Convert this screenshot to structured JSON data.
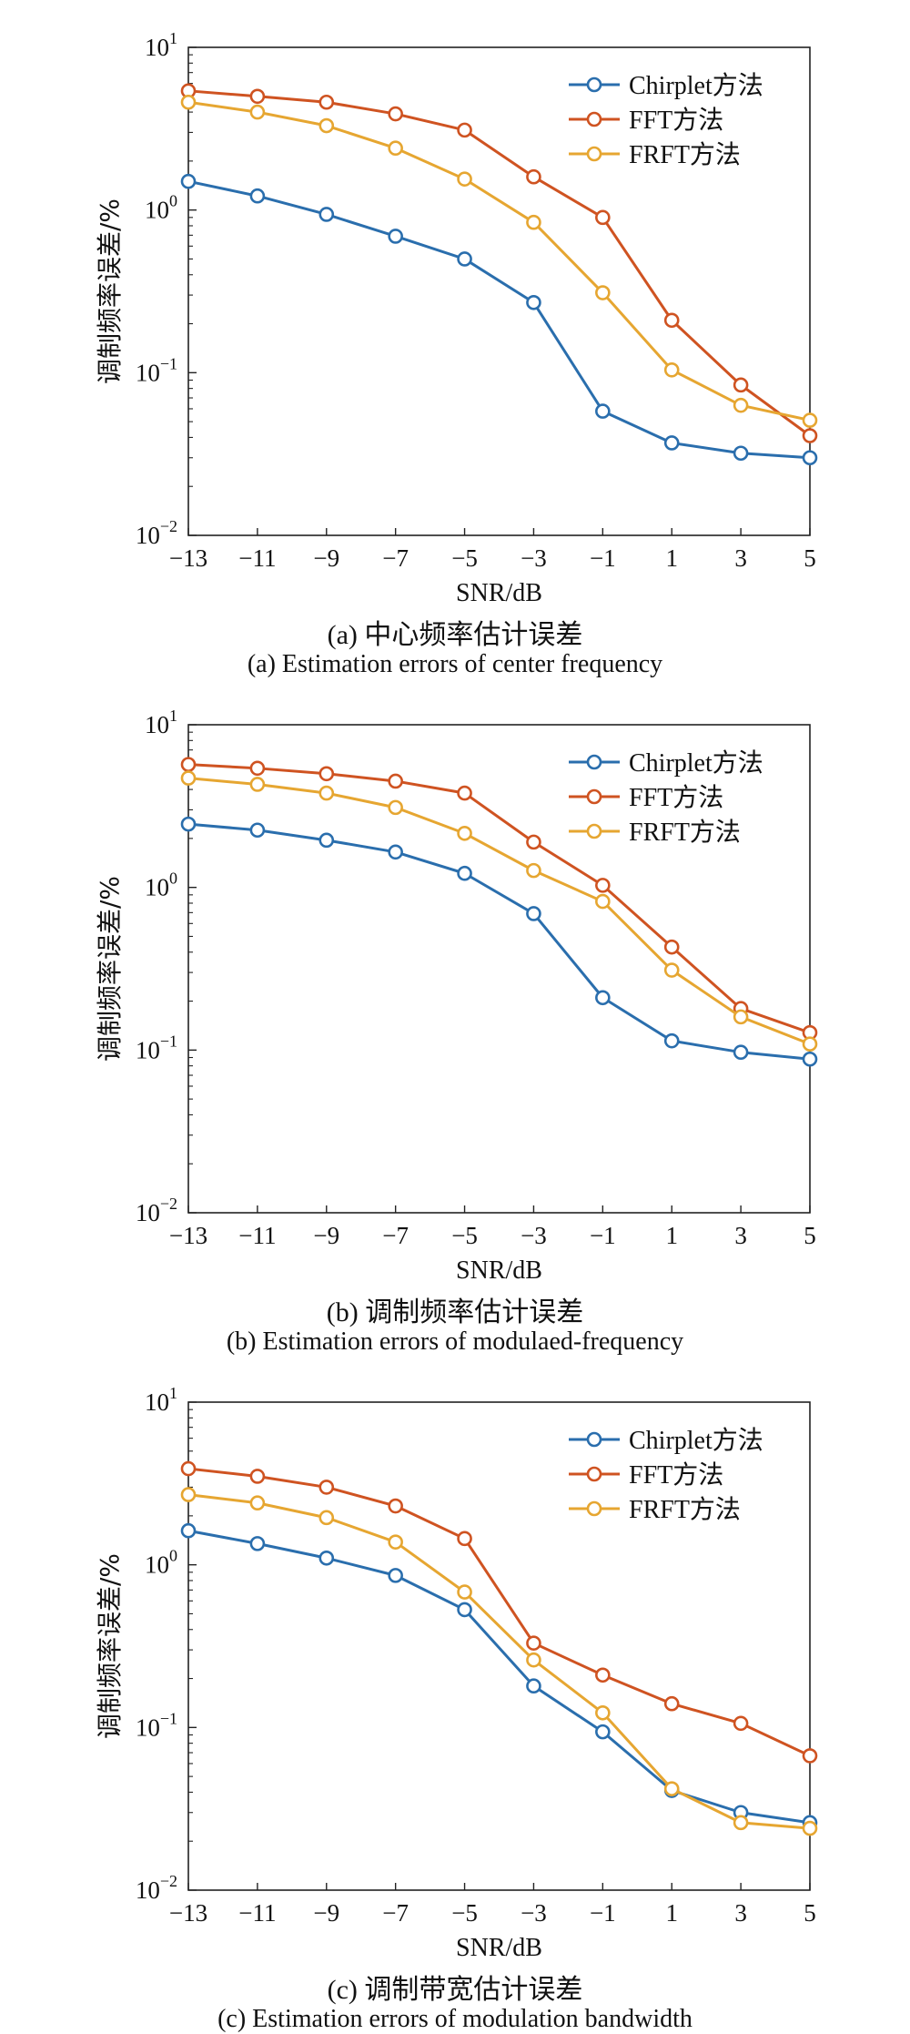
{
  "charts": [
    {
      "caption_cn": "(a) 中心频率估计误差",
      "caption_en": "(a) Estimation errors of center frequency"
    },
    {
      "caption_cn": "(b) 调制频率估计误差",
      "caption_en": "(b) Estimation errors of modulaed-frequency"
    },
    {
      "caption_cn": "(c) 调制带宽估计误差",
      "caption_en": "(c) Estimation errors of modulation bandwidth"
    }
  ],
  "colors": {
    "Chirplet": "#2a6ead",
    "FFT": "#cf5321",
    "FRFT": "#e6a631"
  },
  "chart_data": [
    {
      "type": "line",
      "xlabel": "SNR/dB",
      "ylabel": "调制频率误差/%",
      "yscale": "log",
      "ylim": [
        0.01,
        10
      ],
      "xlim": [
        -13,
        5
      ],
      "xticks": [
        "−13",
        "−11",
        "−9",
        "−7",
        "−5",
        "−3",
        "−1",
        "1",
        "3",
        "5"
      ],
      "grid": false,
      "legend_position": "top-right",
      "x": [
        -13,
        -11,
        -9,
        -7,
        -5,
        -3,
        -1,
        1,
        3,
        5
      ],
      "series": [
        {
          "name": "Chirplet方法",
          "color": "#2a6ead",
          "values": [
            1.5,
            1.22,
            0.94,
            0.69,
            0.5,
            0.27,
            0.058,
            0.037,
            0.032,
            0.03
          ]
        },
        {
          "name": "FFT方法",
          "color": "#cf5321",
          "values": [
            5.4,
            5.0,
            4.6,
            3.9,
            3.1,
            1.6,
            0.9,
            0.21,
            0.084,
            0.041
          ]
        },
        {
          "name": "FRFT方法",
          "color": "#e6a631",
          "values": [
            4.6,
            4.0,
            3.3,
            2.4,
            1.55,
            0.84,
            0.31,
            0.104,
            0.063,
            0.051
          ]
        }
      ]
    },
    {
      "type": "line",
      "xlabel": "SNR/dB",
      "ylabel": "调制频率误差/%",
      "yscale": "log",
      "ylim": [
        0.01,
        10
      ],
      "xlim": [
        -13,
        5
      ],
      "xticks": [
        "−13",
        "−11",
        "−9",
        "−7",
        "−5",
        "−3",
        "−1",
        "1",
        "3",
        "5"
      ],
      "grid": false,
      "legend_position": "top-right",
      "x": [
        -13,
        -11,
        -9,
        -7,
        -5,
        -3,
        -1,
        1,
        3,
        5
      ],
      "series": [
        {
          "name": "Chirplet方法",
          "color": "#2a6ead",
          "values": [
            2.45,
            2.25,
            1.95,
            1.65,
            1.22,
            0.69,
            0.21,
            0.114,
            0.097,
            0.088
          ]
        },
        {
          "name": "FFT方法",
          "color": "#cf5321",
          "values": [
            5.7,
            5.4,
            5.0,
            4.5,
            3.8,
            1.9,
            1.03,
            0.43,
            0.18,
            0.128
          ]
        },
        {
          "name": "FRFT方法",
          "color": "#e6a631",
          "values": [
            4.7,
            4.3,
            3.8,
            3.1,
            2.15,
            1.27,
            0.82,
            0.31,
            0.16,
            0.109
          ]
        }
      ]
    },
    {
      "type": "line",
      "xlabel": "SNR/dB",
      "ylabel": "调制频率误差/%",
      "yscale": "log",
      "ylim": [
        0.01,
        10
      ],
      "xlim": [
        -13,
        5
      ],
      "xticks": [
        "−13",
        "−11",
        "−9",
        "−7",
        "−5",
        "−3",
        "−1",
        "1",
        "3",
        "5"
      ],
      "grid": false,
      "legend_position": "top-right",
      "x": [
        -13,
        -11,
        -9,
        -7,
        -5,
        -3,
        -1,
        1,
        3,
        5
      ],
      "series": [
        {
          "name": "Chirplet方法",
          "color": "#2a6ead",
          "values": [
            1.62,
            1.35,
            1.1,
            0.86,
            0.53,
            0.18,
            0.094,
            0.041,
            0.03,
            0.026
          ]
        },
        {
          "name": "FFT方法",
          "color": "#cf5321",
          "values": [
            3.9,
            3.5,
            3.0,
            2.3,
            1.45,
            0.33,
            0.21,
            0.14,
            0.106,
            0.067
          ]
        },
        {
          "name": "FRFT方法",
          "color": "#e6a631",
          "values": [
            2.7,
            2.4,
            1.95,
            1.38,
            0.68,
            0.26,
            0.123,
            0.042,
            0.026,
            0.024
          ]
        }
      ]
    }
  ]
}
